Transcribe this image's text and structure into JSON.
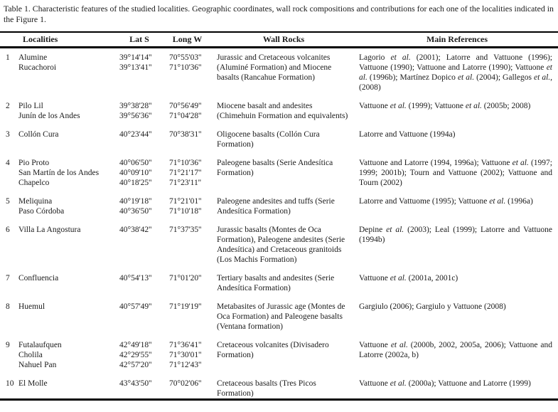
{
  "caption": "Table 1. Characteristic features of the studied localities. Geographic coordinates, wall rock compositions and contributions for each one of the localities indicated in the Figure 1.",
  "header": {
    "localities": "Localities",
    "lat": "Lat S",
    "long": "Long W",
    "wall_rocks": "Wall Rocks",
    "references": "Main References"
  },
  "rows": [
    {
      "num": "1",
      "localities": [
        "Alumine",
        "Rucachoroi"
      ],
      "lat": [
        "39°14'14''",
        "39°13'41''"
      ],
      "long": [
        "70°55'03''",
        "71°10'36''"
      ],
      "wall_rocks": "Jurassic and Cretaceous volcanites (Aluminé Formation) and Miocene basalts (Rancahue Formation)",
      "references": "Lagorio et al. (2001); Latorre and Vattuone (1996); Vattuone (1990); Vattuone and Latorre (1990); Vattuone et al. (1996b); Martínez Dopico et al. (2004); Gallegos et al., (2008)"
    },
    {
      "num": "2",
      "localities": [
        "Pilo Lil",
        "Junín de los Andes"
      ],
      "lat": [
        "39°38'28''",
        "39°56'36''"
      ],
      "long": [
        "70°56'49''",
        "71°04'28''"
      ],
      "wall_rocks": "Miocene basalt and andesites (Chimehuin Formation and equivalents)",
      "references": "Vattuone et al. (1999); Vattuone et al. (2005b; 2008)"
    },
    {
      "num": "3",
      "localities": [
        "Collón Cura"
      ],
      "lat": [
        "40°23'44''"
      ],
      "long": [
        "70°38'31''"
      ],
      "wall_rocks": "Oligocene basalts (Collón Cura Formation)",
      "references": "Latorre and Vattuone (1994a)"
    },
    {
      "num": "4",
      "localities": [
        "Pio Proto",
        "San Martín de los Andes",
        "Chapelco"
      ],
      "lat": [
        "40°06'50''",
        "40°09'10''",
        "40°18'25''"
      ],
      "long": [
        "71°10'36''",
        "71°21'17''",
        "71°23'11''"
      ],
      "wall_rocks": "Paleogene basalts (Serie Andesítica Formation)",
      "references": "Vattuone and Latorre (1994, 1996a); Vattuone et al. (1997; 1999; 2001b); Tourn and Vattuone (2002); Vattuone and Tourn (2002)"
    },
    {
      "num": "5",
      "localities": [
        "Meliquina",
        "Paso Córdoba"
      ],
      "lat": [
        "40°19'18''",
        "40°36'50''"
      ],
      "long": [
        "71°21'01''",
        "71°10'18''"
      ],
      "wall_rocks": "Paleogene andesites and tuffs (Serie Andesítica Formation)",
      "references": "Latorre and Vattuome (1995); Vattuone et al. (1996a)"
    },
    {
      "num": "6",
      "localities": [
        "Villa La Angostura"
      ],
      "lat": [
        "40°38'42''"
      ],
      "long": [
        "71°37'35''"
      ],
      "wall_rocks": "Jurassic basalts (Montes de Oca Formation), Paleogene andesites (Serie Andesítica) and Cretaceous granitoids (Los Machis Formation)",
      "references": "Depine et al. (2003); Leal (1999); Latorre and Vattuone (1994b)"
    },
    {
      "num": "7",
      "localities": [
        "Confluencia"
      ],
      "lat": [
        "40°54'13''"
      ],
      "long": [
        "71°01'20''"
      ],
      "wall_rocks": "Tertiary basalts and andesites (Serie Andesítica Formation)",
      "references": "Vattuone et al. (2001a, 2001c)"
    },
    {
      "num": "8",
      "localities": [
        "Huemul"
      ],
      "lat": [
        "40°57'49''"
      ],
      "long": [
        "71°19'19''"
      ],
      "wall_rocks": "Metabasites of Jurassic age (Montes de Oca Formation) and Paleogene basalts (Ventana formation)",
      "references": "Gargiulo (2006); Gargiulo y Vattuone (2008)"
    },
    {
      "num": "9",
      "localities": [
        "Futalaufquen",
        "Cholila",
        "Nahuel Pan"
      ],
      "lat": [
        "42°49'18''",
        "42°29'55''",
        "42°57'20''"
      ],
      "long": [
        "71°36'41''",
        "71°30'01''",
        "71°12'43''"
      ],
      "wall_rocks": "Cretaceous volcanites (Divisadero Formation)",
      "references": "Vattuone et al. (2000b, 2002, 2005a, 2006); Vattuone and Latorre (2002a, b)"
    },
    {
      "num": "10",
      "localities": [
        "El Molle"
      ],
      "lat": [
        "43°43'50''"
      ],
      "long": [
        "70°02'06''"
      ],
      "wall_rocks": "Cretaceous basalts (Tres Picos Formation)",
      "references": "Vattuone et al. (2000a); Vattuone and Latorre (1999)"
    }
  ]
}
